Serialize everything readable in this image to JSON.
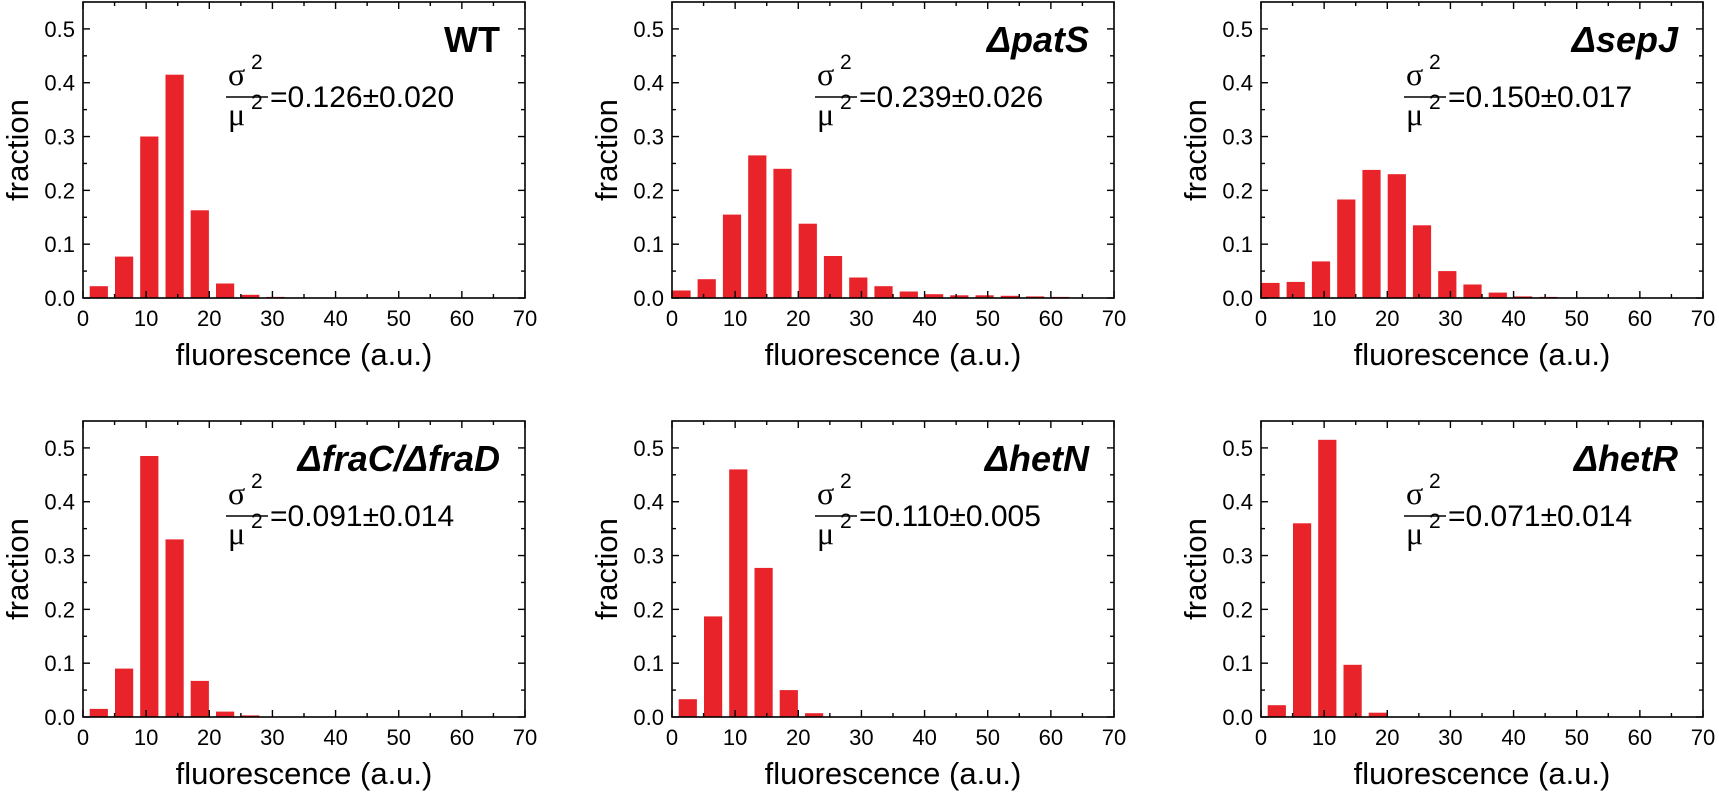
{
  "figure": {
    "bar_color": "#e8232a",
    "title_color": "#1f78c0",
    "axis_color": "#000000"
  },
  "chart_data": [
    {
      "type": "bar",
      "title": "WT",
      "title_italic": false,
      "cv_label": {
        "numerator": "σ",
        "denominator": "μ",
        "sup": "2",
        "value": "=0.126±0.020"
      },
      "xlabel": "fluorescence (a.u.)",
      "ylabel": "fraction",
      "xlim": [
        0,
        70
      ],
      "ylim": [
        0,
        0.55
      ],
      "xticks": [
        0,
        10,
        20,
        30,
        40,
        50,
        60,
        70
      ],
      "yticks": [
        0.0,
        0.1,
        0.2,
        0.3,
        0.4,
        0.5
      ],
      "ytick_labels": [
        "0.0",
        "0.1",
        "0.2",
        "0.3",
        "0.4",
        "0.5"
      ],
      "bin_width": 4,
      "x": [
        2.5,
        6.5,
        10.5,
        14.5,
        18.5,
        22.5,
        26.5,
        30.5,
        34.5
      ],
      "values": [
        0.022,
        0.077,
        0.3,
        0.415,
        0.163,
        0.027,
        0.006,
        0.002,
        0.001
      ]
    },
    {
      "type": "bar",
      "title": "ΔpatS",
      "title_italic": true,
      "cv_label": {
        "numerator": "σ",
        "denominator": "μ",
        "sup": "2",
        "value": "=0.239±0.026"
      },
      "xlabel": "fluorescence (a.u.)",
      "ylabel": "fraction",
      "xlim": [
        0,
        70
      ],
      "ylim": [
        0,
        0.55
      ],
      "xticks": [
        0,
        10,
        20,
        30,
        40,
        50,
        60,
        70
      ],
      "yticks": [
        0.0,
        0.1,
        0.2,
        0.3,
        0.4,
        0.5
      ],
      "ytick_labels": [
        "0.0",
        "0.1",
        "0.2",
        "0.3",
        "0.4",
        "0.5"
      ],
      "bin_width": 4,
      "x": [
        1.5,
        5.5,
        9.5,
        13.5,
        17.5,
        21.5,
        25.5,
        29.5,
        33.5,
        37.5,
        41.5,
        45.5,
        49.5,
        53.5,
        57.5,
        61.5,
        65.5
      ],
      "values": [
        0.014,
        0.035,
        0.155,
        0.265,
        0.24,
        0.138,
        0.078,
        0.038,
        0.022,
        0.012,
        0.007,
        0.005,
        0.005,
        0.004,
        0.003,
        0.002,
        0.001
      ]
    },
    {
      "type": "bar",
      "title": "ΔsepJ",
      "title_italic": true,
      "cv_label": {
        "numerator": "σ",
        "denominator": "μ",
        "sup": "2",
        "value": "=0.150±0.017"
      },
      "xlabel": "fluorescence (a.u.)",
      "ylabel": "fraction",
      "xlim": [
        0,
        70
      ],
      "ylim": [
        0,
        0.55
      ],
      "xticks": [
        0,
        10,
        20,
        30,
        40,
        50,
        60,
        70
      ],
      "yticks": [
        0.0,
        0.1,
        0.2,
        0.3,
        0.4,
        0.5
      ],
      "ytick_labels": [
        "0.0",
        "0.1",
        "0.2",
        "0.3",
        "0.4",
        "0.5"
      ],
      "bin_width": 4,
      "x": [
        1.5,
        5.5,
        9.5,
        13.5,
        17.5,
        21.5,
        25.5,
        29.5,
        33.5,
        37.5,
        41.5,
        45.5
      ],
      "values": [
        0.028,
        0.03,
        0.068,
        0.183,
        0.238,
        0.23,
        0.135,
        0.05,
        0.025,
        0.01,
        0.003,
        0.002
      ]
    },
    {
      "type": "bar",
      "title": "ΔfraC/ΔfraD",
      "title_italic": true,
      "cv_label": {
        "numerator": "σ",
        "denominator": "μ",
        "sup": "2",
        "value": "=0.091±0.014"
      },
      "xlabel": "fluorescence (a.u.)",
      "ylabel": "fraction",
      "xlim": [
        0,
        70
      ],
      "ylim": [
        0,
        0.55
      ],
      "xticks": [
        0,
        10,
        20,
        30,
        40,
        50,
        60,
        70
      ],
      "yticks": [
        0.0,
        0.1,
        0.2,
        0.3,
        0.4,
        0.5
      ],
      "ytick_labels": [
        "0.0",
        "0.1",
        "0.2",
        "0.3",
        "0.4",
        "0.5"
      ],
      "bin_width": 4,
      "x": [
        2.5,
        6.5,
        10.5,
        14.5,
        18.5,
        22.5,
        26.5
      ],
      "values": [
        0.015,
        0.09,
        0.485,
        0.33,
        0.067,
        0.01,
        0.003
      ]
    },
    {
      "type": "bar",
      "title": "ΔhetN",
      "title_italic": true,
      "cv_label": {
        "numerator": "σ",
        "denominator": "μ",
        "sup": "2",
        "value": "=0.110±0.005"
      },
      "xlabel": "fluorescence (a.u.)",
      "ylabel": "fraction",
      "xlim": [
        0,
        70
      ],
      "ylim": [
        0,
        0.55
      ],
      "xticks": [
        0,
        10,
        20,
        30,
        40,
        50,
        60,
        70
      ],
      "yticks": [
        0.0,
        0.1,
        0.2,
        0.3,
        0.4,
        0.5
      ],
      "ytick_labels": [
        "0.0",
        "0.1",
        "0.2",
        "0.3",
        "0.4",
        "0.5"
      ],
      "bin_width": 4,
      "x": [
        2.5,
        6.5,
        10.5,
        14.5,
        18.5,
        22.5
      ],
      "values": [
        0.033,
        0.187,
        0.46,
        0.277,
        0.05,
        0.007
      ]
    },
    {
      "type": "bar",
      "title": "ΔhetR",
      "title_italic": true,
      "cv_label": {
        "numerator": "σ",
        "denominator": "μ",
        "sup": "2",
        "value": "=0.071±0.014"
      },
      "xlabel": "fluorescence (a.u.)",
      "ylabel": "fraction",
      "xlim": [
        0,
        70
      ],
      "ylim": [
        0,
        0.55
      ],
      "xticks": [
        0,
        10,
        20,
        30,
        40,
        50,
        60,
        70
      ],
      "yticks": [
        0.0,
        0.1,
        0.2,
        0.3,
        0.4,
        0.5
      ],
      "ytick_labels": [
        "0.0",
        "0.1",
        "0.2",
        "0.3",
        "0.4",
        "0.5"
      ],
      "bin_width": 4,
      "x": [
        2.5,
        6.5,
        10.5,
        14.5,
        18.5
      ],
      "values": [
        0.022,
        0.36,
        0.515,
        0.097,
        0.008
      ]
    }
  ]
}
